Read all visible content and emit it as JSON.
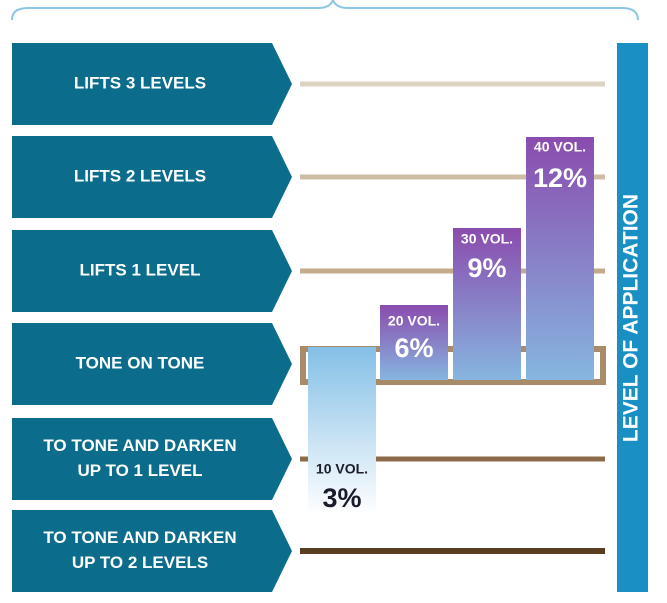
{
  "levels": [
    [
      "LIFTS 3 LEVELS"
    ],
    [
      "LIFTS 2 LEVELS"
    ],
    [
      "LIFTS 1 LEVEL"
    ],
    [
      "TONE ON TONE"
    ],
    [
      "TO TONE AND DARKEN",
      "UP TO 1 LEVEL"
    ],
    [
      "TO TONE AND DARKEN",
      "UP TO 2 LEVELS"
    ]
  ],
  "bars": [
    {
      "volume": "10 VOL.",
      "percent": "3%"
    },
    {
      "volume": "20 VOL.",
      "percent": "6%"
    },
    {
      "volume": "30 VOL.",
      "percent": "9%"
    },
    {
      "volume": "40 VOL.",
      "percent": "12%"
    }
  ],
  "axis_title": "LEVEL OF APPLICATION"
}
